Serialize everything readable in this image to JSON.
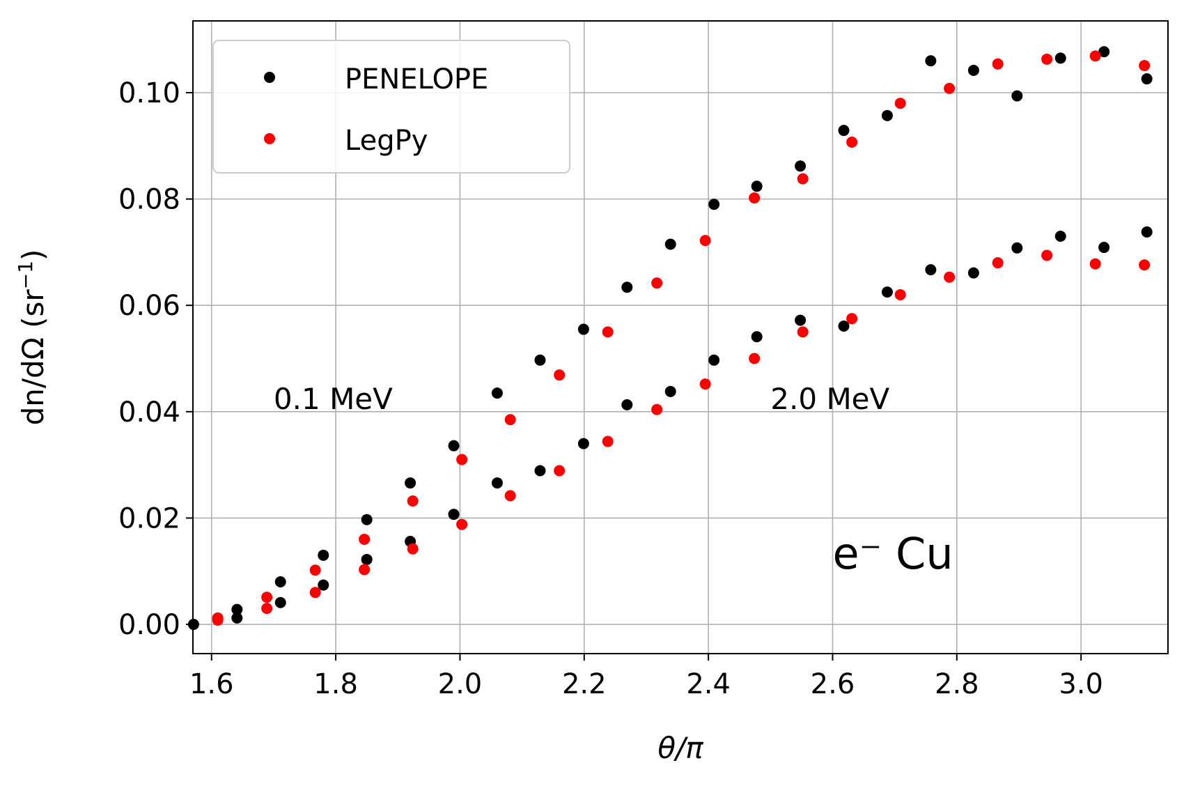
{
  "chart_data": {
    "type": "scatter",
    "xlabel": "θ/π",
    "ylabel_main": "dn/dΩ (sr",
    "ylabel_sup": "−1",
    "ylabel_close": ")",
    "xlim": [
      1.57,
      3.14
    ],
    "ylim": [
      -0.0055,
      0.1135
    ],
    "xticks": [
      1.6,
      1.8,
      2.0,
      2.2,
      2.4,
      2.6,
      2.8,
      3.0
    ],
    "xtick_labels": [
      "1.6",
      "1.8",
      "2.0",
      "2.2",
      "2.4",
      "2.6",
      "2.8",
      "3.0"
    ],
    "yticks": [
      0.0,
      0.02,
      0.04,
      0.06,
      0.08,
      0.1
    ],
    "ytick_labels": [
      "0.00",
      "0.02",
      "0.04",
      "0.06",
      "0.08",
      "0.10"
    ],
    "grid": true,
    "legend_position": "top-left",
    "annotations": [
      {
        "text": "0.1 MeV",
        "x": 1.7,
        "y": 0.0405,
        "size": "normal"
      },
      {
        "text": "2.0 MeV",
        "x": 2.5,
        "y": 0.0405,
        "size": "normal"
      },
      {
        "text": "e⁻  Cu",
        "x": 2.6,
        "y": 0.0105,
        "size": "large"
      }
    ],
    "series": [
      {
        "name": "PENELOPE",
        "color": "#000000",
        "points": [
          [
            1.571,
            0.0
          ],
          [
            1.641,
            0.0028
          ],
          [
            1.711,
            0.008
          ],
          [
            1.78,
            0.013
          ],
          [
            1.85,
            0.0197
          ],
          [
            1.92,
            0.0266
          ],
          [
            1.99,
            0.0336
          ],
          [
            2.06,
            0.0435
          ],
          [
            2.129,
            0.0497
          ],
          [
            2.199,
            0.0555
          ],
          [
            2.269,
            0.0634
          ],
          [
            2.339,
            0.0715
          ],
          [
            2.409,
            0.079
          ],
          [
            2.478,
            0.0824
          ],
          [
            2.548,
            0.0862
          ],
          [
            2.618,
            0.0929
          ],
          [
            2.688,
            0.0957
          ],
          [
            2.758,
            0.106
          ],
          [
            2.827,
            0.1042
          ],
          [
            2.897,
            0.0994
          ],
          [
            2.967,
            0.1065
          ],
          [
            3.037,
            0.1077
          ],
          [
            3.106,
            0.1026
          ],
          [
            1.641,
            0.0012
          ],
          [
            1.711,
            0.0041
          ],
          [
            1.78,
            0.0074
          ],
          [
            1.85,
            0.0122
          ],
          [
            1.92,
            0.0156
          ],
          [
            1.99,
            0.0207
          ],
          [
            2.06,
            0.0266
          ],
          [
            2.129,
            0.0289
          ],
          [
            2.199,
            0.034
          ],
          [
            2.269,
            0.0413
          ],
          [
            2.339,
            0.0438
          ],
          [
            2.409,
            0.0497
          ],
          [
            2.478,
            0.0541
          ],
          [
            2.548,
            0.0572
          ],
          [
            2.618,
            0.0561
          ],
          [
            2.688,
            0.0625
          ],
          [
            2.758,
            0.0667
          ],
          [
            2.827,
            0.0661
          ],
          [
            2.897,
            0.0708
          ],
          [
            2.967,
            0.073
          ],
          [
            3.037,
            0.0709
          ],
          [
            3.106,
            0.0738
          ]
        ]
      },
      {
        "name": "LegPy",
        "color": "#ff0000",
        "points": [
          [
            1.61,
            0.0012
          ],
          [
            1.689,
            0.0051
          ],
          [
            1.767,
            0.0102
          ],
          [
            1.846,
            0.016
          ],
          [
            1.924,
            0.0232
          ],
          [
            2.003,
            0.031
          ],
          [
            2.081,
            0.0385
          ],
          [
            2.16,
            0.0469
          ],
          [
            2.238,
            0.055
          ],
          [
            2.317,
            0.0642
          ],
          [
            2.395,
            0.0722
          ],
          [
            2.474,
            0.0802
          ],
          [
            2.552,
            0.0838
          ],
          [
            2.631,
            0.0907
          ],
          [
            2.709,
            0.098
          ],
          [
            2.788,
            0.1008
          ],
          [
            2.866,
            0.1054
          ],
          [
            2.945,
            0.1063
          ],
          [
            3.023,
            0.1069
          ],
          [
            3.102,
            0.1051
          ],
          [
            1.61,
            0.0008
          ],
          [
            1.689,
            0.003
          ],
          [
            1.767,
            0.006
          ],
          [
            1.846,
            0.0103
          ],
          [
            1.924,
            0.0142
          ],
          [
            2.003,
            0.0188
          ],
          [
            2.081,
            0.0242
          ],
          [
            2.16,
            0.0289
          ],
          [
            2.238,
            0.0344
          ],
          [
            2.317,
            0.0404
          ],
          [
            2.395,
            0.0452
          ],
          [
            2.474,
            0.05
          ],
          [
            2.552,
            0.055
          ],
          [
            2.631,
            0.0575
          ],
          [
            2.709,
            0.062
          ],
          [
            2.788,
            0.0653
          ],
          [
            2.866,
            0.068
          ],
          [
            2.945,
            0.0694
          ],
          [
            3.023,
            0.0678
          ],
          [
            3.102,
            0.0676
          ]
        ]
      }
    ]
  }
}
